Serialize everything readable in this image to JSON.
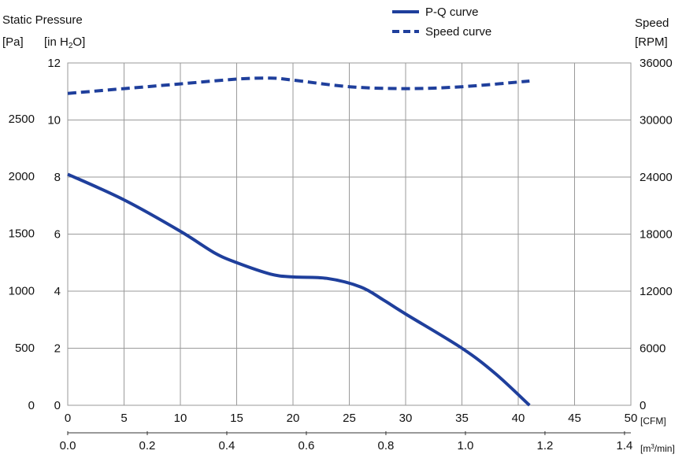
{
  "chart_data": {
    "type": "line",
    "headers": {
      "left_title": "Static Pressure",
      "left_unit_pa": "[Pa]",
      "left_unit_inh2o_prefix": "[in H",
      "left_unit_inh2o_sub": "2",
      "left_unit_inh2o_suffix": "O]",
      "right_title": "Speed",
      "right_unit": "[RPM]",
      "cfm_unit": "[CFM]",
      "m3_unit_prefix": "[m",
      "m3_unit_sup": "3",
      "m3_unit_suffix": "/min]"
    },
    "axes": {
      "x_cfm": {
        "ticks": [
          "0",
          "5",
          "10",
          "15",
          "20",
          "25",
          "30",
          "35",
          "40",
          "45",
          "50"
        ],
        "range": [
          0,
          50
        ]
      },
      "x_m3min": {
        "ticks": [
          "0.0",
          "0.2",
          "0.4",
          "0.6",
          "0.8",
          "1.0",
          "1.2",
          "1.4"
        ],
        "range": [
          0,
          1.416
        ]
      },
      "y_inh2o": {
        "ticks": [
          "0",
          "2",
          "4",
          "6",
          "8",
          "10",
          "12"
        ],
        "range": [
          0,
          12
        ]
      },
      "y_pa": {
        "ticks": [
          "0",
          "500",
          "1000",
          "1500",
          "2000",
          "2500"
        ],
        "range": [
          0,
          2989
        ]
      },
      "y_rpm": {
        "ticks": [
          "0",
          "6000",
          "12000",
          "18000",
          "24000",
          "30000",
          "36000"
        ],
        "range": [
          0,
          36000
        ]
      }
    },
    "grid": true,
    "legend_position": "top-center",
    "series": [
      {
        "name": "P-Q curve",
        "style": "solid",
        "color": "#1f3f9c",
        "axis": "in H2O",
        "x": [
          0,
          5,
          10,
          13,
          15,
          18,
          20,
          23,
          26,
          28,
          30,
          35,
          38,
          41
        ],
        "y": [
          8.1,
          7.2,
          6.1,
          5.35,
          5.0,
          4.6,
          4.5,
          4.45,
          4.15,
          3.7,
          3.2,
          2.0,
          1.1,
          0.0
        ]
      },
      {
        "name": "Speed curve",
        "style": "dashed",
        "color": "#1f3f9c",
        "axis": "RPM",
        "x": [
          0,
          5,
          10,
          15,
          18,
          20,
          25,
          30,
          35,
          41
        ],
        "y": [
          32800,
          33300,
          33800,
          34300,
          34400,
          34200,
          33500,
          33300,
          33500,
          34100
        ]
      }
    ]
  }
}
